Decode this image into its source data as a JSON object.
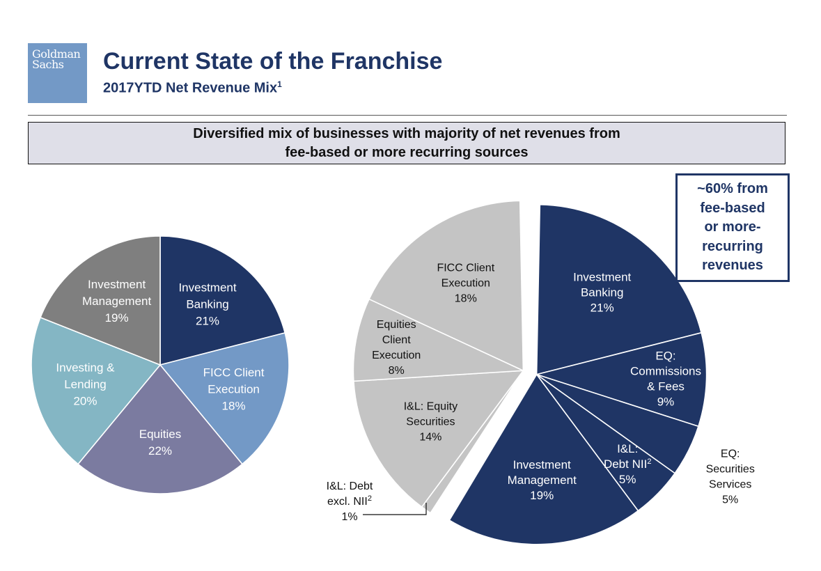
{
  "logo": {
    "line1": "Goldman",
    "line2": "Sachs"
  },
  "header": {
    "title": "Current State of the Franchise",
    "subtitle": "2017YTD Net Revenue Mix",
    "subtitle_footnote": "1"
  },
  "banner": {
    "line1": "Diversified mix of businesses with majority of net revenues from",
    "line2": "fee-based or more recurring sources"
  },
  "callout": {
    "lines": [
      "~60% from",
      "fee-based",
      "or more-",
      "recurring",
      "revenues"
    ]
  },
  "colors": {
    "navy": "#1f3565",
    "steel_blue": "#7399c6",
    "purple_gray": "#7b7ba0",
    "teal": "#84b6c4",
    "gray": "#7f7f7f",
    "light_gray": "#c4c4c4"
  },
  "chart_data": [
    {
      "type": "pie",
      "slices": [
        {
          "label_lines": [
            "Investment",
            "Banking",
            "21%"
          ],
          "value": 21,
          "color": "#1f3565"
        },
        {
          "label_lines": [
            "FICC Client",
            "Execution",
            "18%"
          ],
          "value": 18,
          "color": "#7399c6"
        },
        {
          "label_lines": [
            "Equities",
            "22%"
          ],
          "value": 22,
          "color": "#7b7ba0"
        },
        {
          "label_lines": [
            "Investing &",
            "Lending",
            "20%"
          ],
          "value": 20,
          "color": "#84b6c4"
        },
        {
          "label_lines": [
            "Investment",
            "Management",
            "19%"
          ],
          "value": 19,
          "color": "#7f7f7f"
        }
      ]
    },
    {
      "type": "pie",
      "exploded_group": "fee-based or more recurring",
      "slices": [
        {
          "label_lines": [
            "Investment",
            "Banking",
            "21%"
          ],
          "value": 21,
          "color": "#1f3565",
          "group": "fee-based"
        },
        {
          "label_lines": [
            "EQ:",
            "Commissions",
            "& Fees",
            "9%"
          ],
          "value": 9,
          "color": "#1f3565",
          "group": "fee-based"
        },
        {
          "label_lines": [
            "EQ:",
            "Securities",
            "Services",
            "5%"
          ],
          "value": 5,
          "color": "#1f3565",
          "group": "fee-based"
        },
        {
          "label_lines": [
            "I&L:",
            "Debt NII",
            "5%"
          ],
          "footnote": "2",
          "value": 5,
          "color": "#1f3565",
          "group": "fee-based"
        },
        {
          "label_lines": [
            "Investment",
            "Management",
            "19%"
          ],
          "value": 19,
          "color": "#1f3565",
          "group": "fee-based"
        },
        {
          "label_lines": [
            "I&L: Debt",
            "excl. NII",
            "1%"
          ],
          "footnote": "2",
          "value": 1,
          "color": "#c4c4c4",
          "group": "other"
        },
        {
          "label_lines": [
            "I&L: Equity",
            "Securities",
            "14%"
          ],
          "value": 14,
          "color": "#c4c4c4",
          "group": "other"
        },
        {
          "label_lines": [
            "Equities",
            "Client",
            "Execution",
            "8%"
          ],
          "value": 8,
          "color": "#c4c4c4",
          "group": "other"
        },
        {
          "label_lines": [
            "FICC Client",
            "Execution",
            "18%"
          ],
          "value": 18,
          "color": "#c4c4c4",
          "group": "other"
        }
      ]
    }
  ]
}
